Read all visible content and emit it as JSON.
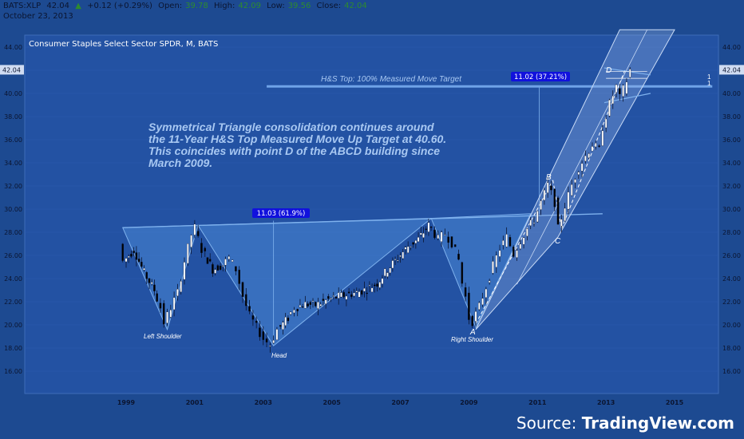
{
  "header": {
    "symbol": "BATS:XLP",
    "last": "42.04",
    "arrow": "▲",
    "change": "+0.12 (+0.29%)",
    "open_label": "Open:",
    "open": "39.78",
    "high_label": "High:",
    "high": "42.09",
    "low_label": "Low:",
    "low": "39.56",
    "close_label": "Close:",
    "close": "42.04",
    "date": "October 23, 2013"
  },
  "chart_title": "Consumer Staples Select Sector SPDR, M, BATS",
  "source": {
    "prefix": "Source: ",
    "name": "TradingView.com"
  },
  "colors": {
    "background": "#1d4a91",
    "plot": "#2352a3",
    "pattern_fill": "#4a86d6",
    "line": "#7fb2ee",
    "candle_up": "#ffffff",
    "candle_down": "#000000",
    "annotation": "#a8c8f2",
    "badge": "#1111dd"
  },
  "annotations": {
    "main_text": [
      "Symmetrical Triangle consolidation continues around",
      "the 11-Year H&S Top Measured Move Up Target at 40.60.",
      "This coincides with point D of the ABCD building since",
      "March 2009."
    ],
    "target_label": "H&S Top: 100% Measured Move Target",
    "measure_badge_1": "11.03 (61.9%)",
    "measure_badge_2": "11.02 (37.21%)",
    "left_shoulder": "Left Shoulder",
    "head": "Head",
    "right_shoulder": "Right Shoulder",
    "point_a": "A",
    "point_b": "B",
    "point_c": "C",
    "point_d": "D",
    "mark_1": "1",
    "mark_2": "1"
  },
  "chart_data": {
    "type": "candlestick",
    "interval": "monthly",
    "x_ticks": [
      "1999",
      "2001",
      "2003",
      "2005",
      "2007",
      "2009",
      "2011",
      "2013",
      "2015"
    ],
    "y_ticks": [
      "16.00",
      "18.00",
      "20.00",
      "22.00",
      "24.00",
      "26.00",
      "28.00",
      "30.00",
      "32.00",
      "34.00",
      "36.00",
      "38.00",
      "40.00",
      "42.00",
      "44.00"
    ],
    "ylim": [
      14.5,
      45.5
    ],
    "xlim": [
      1998.0,
      2016.3
    ],
    "last_price_label": "42.04",
    "price_path": [
      [
        1998.9,
        27.0
      ],
      [
        1999.0,
        25.5
      ],
      [
        1999.3,
        26.5
      ],
      [
        1999.6,
        24.5
      ],
      [
        1999.9,
        23.0
      ],
      [
        2000.1,
        21.5
      ],
      [
        2000.2,
        20.2
      ],
      [
        2000.4,
        21.5
      ],
      [
        2000.6,
        22.8
      ],
      [
        2000.8,
        25.5
      ],
      [
        2001.0,
        27.8
      ],
      [
        2001.1,
        28.4
      ],
      [
        2001.3,
        26.5
      ],
      [
        2001.6,
        24.8
      ],
      [
        2001.9,
        25.2
      ],
      [
        2002.1,
        25.8
      ],
      [
        2002.3,
        24.8
      ],
      [
        2002.5,
        22.5
      ],
      [
        2002.7,
        20.8
      ],
      [
        2002.9,
        19.8
      ],
      [
        2003.1,
        18.8
      ],
      [
        2003.3,
        18.3
      ],
      [
        2003.5,
        19.6
      ],
      [
        2003.8,
        20.6
      ],
      [
        2004.0,
        21.5
      ],
      [
        2004.3,
        21.8
      ],
      [
        2004.6,
        21.7
      ],
      [
        2004.9,
        22.1
      ],
      [
        2005.2,
        22.4
      ],
      [
        2005.5,
        22.6
      ],
      [
        2005.8,
        22.8
      ],
      [
        2006.1,
        23.1
      ],
      [
        2006.4,
        23.6
      ],
      [
        2006.7,
        24.8
      ],
      [
        2007.0,
        25.8
      ],
      [
        2007.3,
        26.8
      ],
      [
        2007.6,
        27.4
      ],
      [
        2007.9,
        28.6
      ],
      [
        2008.0,
        28.3
      ],
      [
        2008.2,
        27.4
      ],
      [
        2008.4,
        27.9
      ],
      [
        2008.6,
        27.1
      ],
      [
        2008.8,
        25.6
      ],
      [
        2008.9,
        23.6
      ],
      [
        2009.0,
        22.4
      ],
      [
        2009.1,
        20.6
      ],
      [
        2009.2,
        20.3
      ],
      [
        2009.4,
        21.6
      ],
      [
        2009.6,
        23.3
      ],
      [
        2009.8,
        25.1
      ],
      [
        2010.0,
        26.6
      ],
      [
        2010.2,
        27.6
      ],
      [
        2010.4,
        26.1
      ],
      [
        2010.6,
        27.3
      ],
      [
        2010.8,
        28.3
      ],
      [
        2011.0,
        29.1
      ],
      [
        2011.2,
        30.6
      ],
      [
        2011.4,
        32.1
      ],
      [
        2011.6,
        30.6
      ],
      [
        2011.7,
        28.3
      ],
      [
        2011.9,
        30.3
      ],
      [
        2012.1,
        32.1
      ],
      [
        2012.3,
        33.6
      ],
      [
        2012.5,
        34.6
      ],
      [
        2012.7,
        35.6
      ],
      [
        2012.9,
        35.1
      ],
      [
        2013.0,
        37.1
      ],
      [
        2013.2,
        39.1
      ],
      [
        2013.4,
        40.6
      ],
      [
        2013.5,
        39.6
      ],
      [
        2013.7,
        41.1
      ],
      [
        2013.8,
        42.04
      ]
    ]
  }
}
